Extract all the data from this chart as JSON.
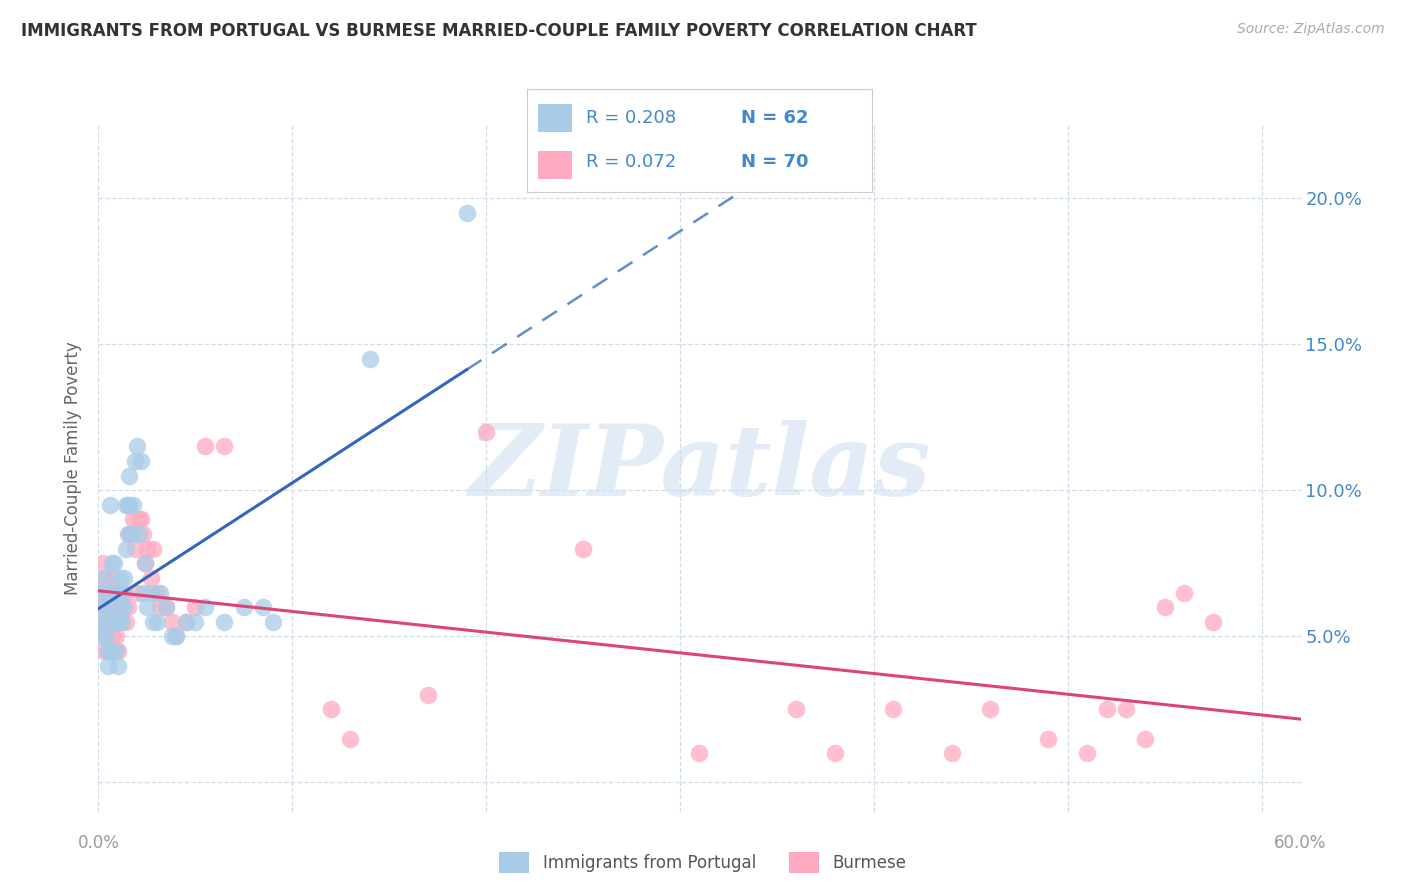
{
  "title": "IMMIGRANTS FROM PORTUGAL VS BURMESE MARRIED-COUPLE FAMILY POVERTY CORRELATION CHART",
  "source": "Source: ZipAtlas.com",
  "ylabel": "Married-Couple Family Poverty",
  "xlim": [
    0.0,
    0.62
  ],
  "ylim": [
    -0.01,
    0.225
  ],
  "yticks": [
    0.0,
    0.05,
    0.1,
    0.15,
    0.2
  ],
  "ytick_labels": [
    "",
    "5.0%",
    "10.0%",
    "15.0%",
    "20.0%"
  ],
  "xtick_labels_show": [
    "0.0%",
    "60.0%"
  ],
  "series1_label": "Immigrants from Portugal",
  "series1_R_text": "R = 0.208",
  "series1_N_text": "N = 62",
  "series1_color": "#a8cce8",
  "series1_trend_color": "#3366bb",
  "series2_label": "Burmese",
  "series2_R_text": "R = 0.072",
  "series2_N_text": "N = 70",
  "series2_color": "#ffaac0",
  "series2_trend_color": "#dd4477",
  "watermark": "ZIPatlas",
  "background_color": "#ffffff",
  "grid_color": "#d0dde8",
  "title_color": "#333333",
  "axis_label_color": "#4488cc",
  "series1_x": [
    0.001,
    0.002,
    0.002,
    0.003,
    0.003,
    0.004,
    0.004,
    0.005,
    0.005,
    0.005,
    0.006,
    0.006,
    0.006,
    0.007,
    0.007,
    0.007,
    0.008,
    0.008,
    0.008,
    0.009,
    0.009,
    0.009,
    0.01,
    0.01,
    0.01,
    0.011,
    0.011,
    0.012,
    0.012,
    0.013,
    0.013,
    0.014,
    0.014,
    0.015,
    0.015,
    0.016,
    0.016,
    0.017,
    0.018,
    0.019,
    0.02,
    0.021,
    0.022,
    0.023,
    0.024,
    0.025,
    0.027,
    0.028,
    0.03,
    0.032,
    0.035,
    0.038,
    0.04,
    0.045,
    0.05,
    0.055,
    0.065,
    0.075,
    0.085,
    0.09,
    0.14,
    0.19
  ],
  "series1_y": [
    0.055,
    0.065,
    0.05,
    0.06,
    0.07,
    0.05,
    0.055,
    0.04,
    0.045,
    0.06,
    0.065,
    0.095,
    0.045,
    0.055,
    0.065,
    0.075,
    0.055,
    0.065,
    0.075,
    0.055,
    0.065,
    0.045,
    0.055,
    0.065,
    0.04,
    0.06,
    0.07,
    0.055,
    0.065,
    0.06,
    0.07,
    0.08,
    0.095,
    0.085,
    0.095,
    0.095,
    0.105,
    0.085,
    0.095,
    0.11,
    0.115,
    0.085,
    0.11,
    0.065,
    0.075,
    0.06,
    0.065,
    0.055,
    0.055,
    0.065,
    0.06,
    0.05,
    0.05,
    0.055,
    0.055,
    0.06,
    0.055,
    0.06,
    0.06,
    0.055,
    0.145,
    0.195
  ],
  "series2_x": [
    0.001,
    0.001,
    0.002,
    0.002,
    0.003,
    0.003,
    0.004,
    0.004,
    0.004,
    0.005,
    0.005,
    0.005,
    0.006,
    0.006,
    0.007,
    0.007,
    0.007,
    0.008,
    0.008,
    0.008,
    0.009,
    0.009,
    0.01,
    0.01,
    0.011,
    0.011,
    0.012,
    0.013,
    0.014,
    0.015,
    0.016,
    0.017,
    0.018,
    0.019,
    0.02,
    0.021,
    0.022,
    0.023,
    0.024,
    0.025,
    0.027,
    0.028,
    0.03,
    0.032,
    0.035,
    0.038,
    0.04,
    0.045,
    0.05,
    0.055,
    0.065,
    0.12,
    0.13,
    0.17,
    0.2,
    0.25,
    0.31,
    0.36,
    0.38,
    0.41,
    0.44,
    0.46,
    0.49,
    0.51,
    0.52,
    0.53,
    0.54,
    0.55,
    0.56,
    0.575
  ],
  "series2_y": [
    0.055,
    0.065,
    0.06,
    0.075,
    0.055,
    0.045,
    0.05,
    0.06,
    0.07,
    0.045,
    0.055,
    0.065,
    0.055,
    0.065,
    0.05,
    0.06,
    0.07,
    0.055,
    0.065,
    0.045,
    0.05,
    0.06,
    0.065,
    0.045,
    0.055,
    0.065,
    0.06,
    0.065,
    0.055,
    0.06,
    0.085,
    0.085,
    0.09,
    0.08,
    0.065,
    0.09,
    0.09,
    0.085,
    0.075,
    0.08,
    0.07,
    0.08,
    0.065,
    0.06,
    0.06,
    0.055,
    0.05,
    0.055,
    0.06,
    0.115,
    0.115,
    0.025,
    0.015,
    0.03,
    0.12,
    0.08,
    0.01,
    0.025,
    0.01,
    0.025,
    0.01,
    0.025,
    0.015,
    0.01,
    0.025,
    0.025,
    0.015,
    0.06,
    0.065,
    0.055
  ]
}
